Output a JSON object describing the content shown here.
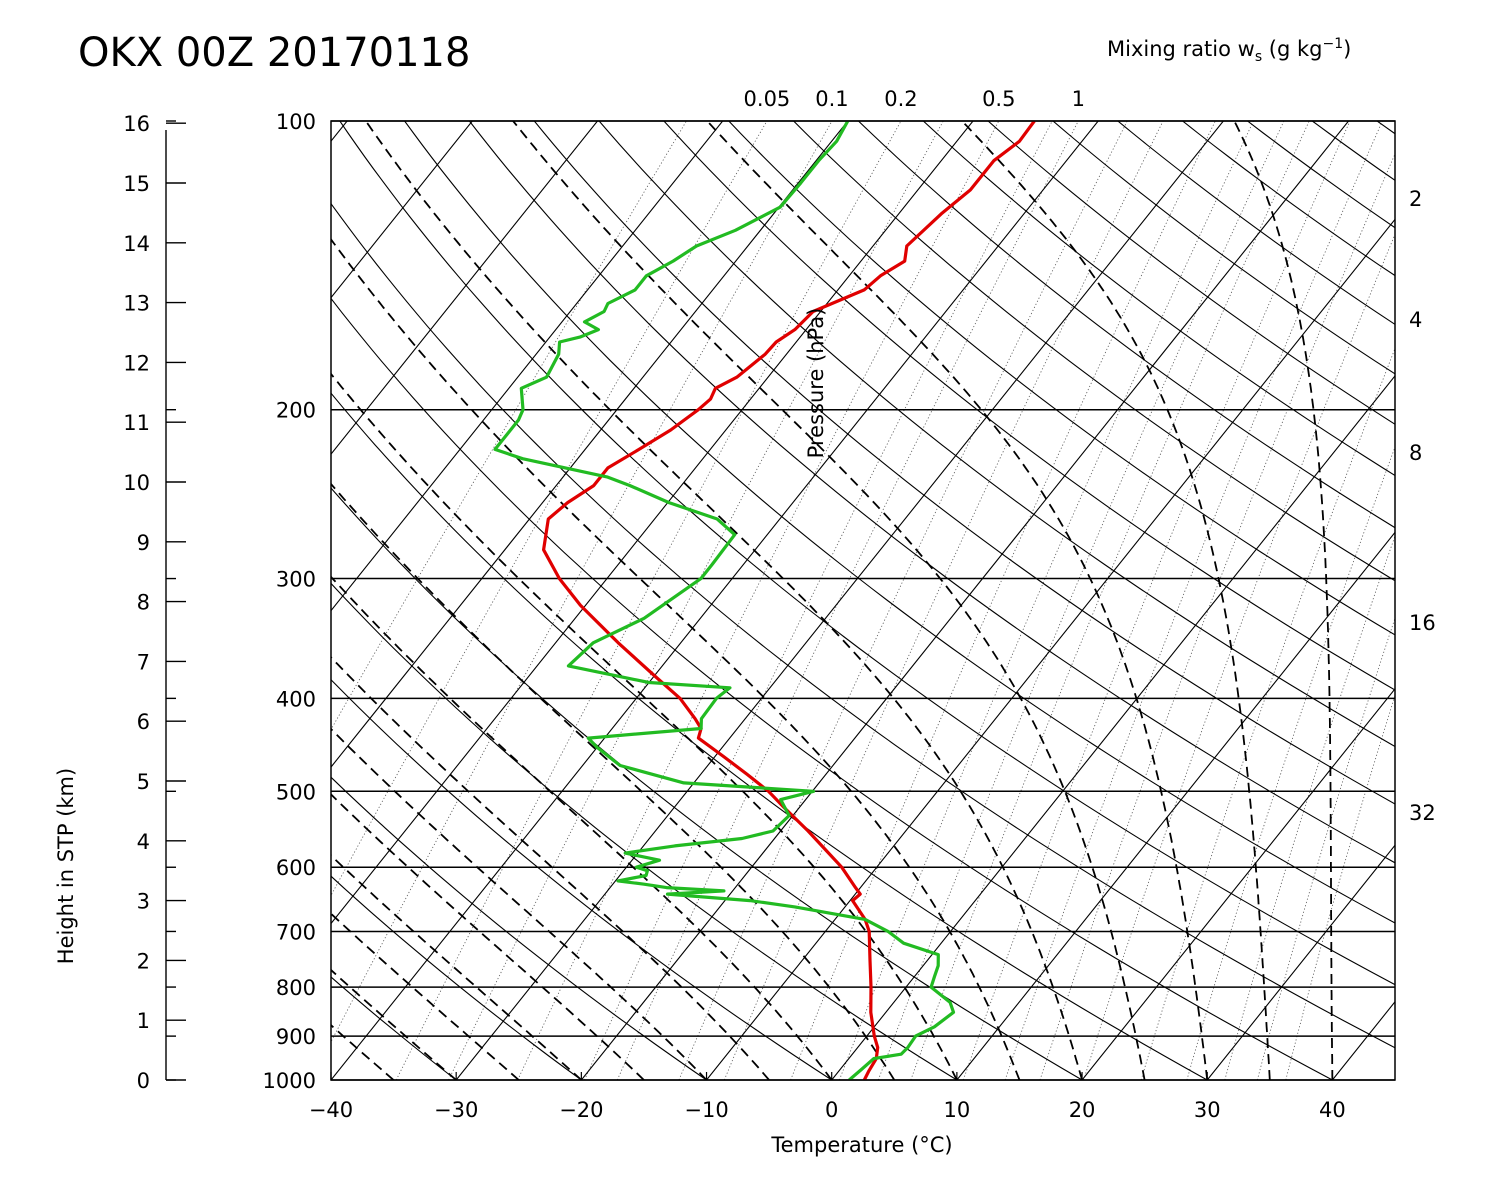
{
  "title": "OKX 00Z 20170118",
  "mixing_ratio_label": {
    "prefix": "Mixing ratio w",
    "sub": "s",
    "middle": " (g kg",
    "sup": "−1",
    "suffix": ")"
  },
  "mixing_ratio_ticks": [
    "0.05",
    "0.1",
    "0.2",
    "0.5",
    "1"
  ],
  "right_ticks": [
    "2",
    "4",
    "8",
    "16",
    "32"
  ],
  "chart_data": {
    "type": "line",
    "subtype": "skew-T log-P diagram",
    "xlabel": "Temperature (°C)",
    "ylabel_left": "Height in STP (km)",
    "ylabel_inner": "Pressure (hPa)",
    "xlim": [
      -40,
      45
    ],
    "ylim_hpa": [
      1000,
      100
    ],
    "pressure_scale": "log",
    "x_ticks": [
      "−40",
      "−30",
      "−20",
      "−10",
      "0",
      "10",
      "20",
      "30",
      "40"
    ],
    "pressure_ticks": [
      "1000",
      "900",
      "800",
      "700",
      "600",
      "500",
      "400",
      "300",
      "200",
      "100"
    ],
    "height_ticks": [
      "0",
      "1",
      "2",
      "3",
      "4",
      "5",
      "6",
      "7",
      "8",
      "9",
      "10",
      "11",
      "12",
      "13",
      "14",
      "15",
      "16"
    ],
    "series": [
      {
        "color": "#e00000",
        "values": [
          [
            1000,
            2.6
          ],
          [
            980,
            2.4
          ],
          [
            950,
            2.2
          ],
          [
            925,
            1.6
          ],
          [
            900,
            0.6
          ],
          [
            850,
            -1.2
          ],
          [
            800,
            -2.8
          ],
          [
            750,
            -4.6
          ],
          [
            700,
            -6.5
          ],
          [
            680,
            -7.6
          ],
          [
            650,
            -9.8
          ],
          [
            640,
            -9.6
          ],
          [
            630,
            -10.4
          ],
          [
            600,
            -12.8
          ],
          [
            550,
            -17.8
          ],
          [
            520,
            -21.2
          ],
          [
            500,
            -23.5
          ],
          [
            480,
            -26.3
          ],
          [
            460,
            -29.3
          ],
          [
            440,
            -32.5
          ],
          [
            430,
            -32.9
          ],
          [
            420,
            -34.0
          ],
          [
            400,
            -36.5
          ],
          [
            380,
            -39.8
          ],
          [
            350,
            -45.0
          ],
          [
            320,
            -50.4
          ],
          [
            300,
            -53.8
          ],
          [
            280,
            -56.9
          ],
          [
            260,
            -58.5
          ],
          [
            250,
            -58.0
          ],
          [
            240,
            -57.0
          ],
          [
            230,
            -57.0
          ],
          [
            220,
            -55.7
          ],
          [
            210,
            -54.4
          ],
          [
            200,
            -53.5
          ],
          [
            195,
            -53.2
          ],
          [
            190,
            -53.5
          ],
          [
            185,
            -52.5
          ],
          [
            175,
            -51.7
          ],
          [
            170,
            -51.6
          ],
          [
            165,
            -50.9
          ],
          [
            158,
            -50.6
          ],
          [
            150,
            -47.9
          ],
          [
            145,
            -47.5
          ],
          [
            140,
            -46.5
          ],
          [
            135,
            -47.3
          ],
          [
            125,
            -46.6
          ],
          [
            118,
            -45.8
          ],
          [
            110,
            -45.8
          ],
          [
            105,
            -45.0
          ],
          [
            100,
            -45.1
          ]
        ]
      },
      {
        "color": "#22bb22",
        "values": [
          [
            1000,
            1.4
          ],
          [
            975,
            1.7
          ],
          [
            950,
            2.0
          ],
          [
            940,
            3.9
          ],
          [
            925,
            4.0
          ],
          [
            900,
            3.9
          ],
          [
            880,
            4.8
          ],
          [
            850,
            5.4
          ],
          [
            830,
            4.5
          ],
          [
            800,
            2.0
          ],
          [
            780,
            1.6
          ],
          [
            760,
            1.2
          ],
          [
            740,
            0.5
          ],
          [
            720,
            -3.0
          ],
          [
            700,
            -5.0
          ],
          [
            680,
            -7.6
          ],
          [
            660,
            -14.0
          ],
          [
            650,
            -18.0
          ],
          [
            640,
            -25.0
          ],
          [
            635,
            -20.7
          ],
          [
            630,
            -25.5
          ],
          [
            625,
            -27.5
          ],
          [
            620,
            -29.8
          ],
          [
            612,
            -27.9
          ],
          [
            605,
            -28.1
          ],
          [
            600,
            -29.2
          ],
          [
            590,
            -27.8
          ],
          [
            580,
            -31.0
          ],
          [
            570,
            -27.5
          ],
          [
            560,
            -22.6
          ],
          [
            550,
            -20.6
          ],
          [
            530,
            -20.3
          ],
          [
            510,
            -22.0
          ],
          [
            500,
            -19.9
          ],
          [
            490,
            -30.8
          ],
          [
            470,
            -37.0
          ],
          [
            450,
            -40.0
          ],
          [
            440,
            -41.3
          ],
          [
            430,
            -32.9
          ],
          [
            420,
            -33.5
          ],
          [
            400,
            -33.6
          ],
          [
            390,
            -33.2
          ],
          [
            385,
            -40.0
          ],
          [
            370,
            -47.5
          ],
          [
            350,
            -47.0
          ],
          [
            330,
            -44.5
          ],
          [
            300,
            -42.5
          ],
          [
            290,
            -42.5
          ],
          [
            270,
            -42.6
          ],
          [
            260,
            -45.0
          ],
          [
            250,
            -49.9
          ],
          [
            240,
            -54.1
          ],
          [
            235,
            -56.5
          ],
          [
            225,
            -64.4
          ],
          [
            220,
            -67.2
          ],
          [
            205,
            -67.2
          ],
          [
            200,
            -67.5
          ],
          [
            190,
            -69.0
          ],
          [
            185,
            -67.7
          ],
          [
            175,
            -68.2
          ],
          [
            170,
            -68.9
          ],
          [
            168,
            -67.6
          ],
          [
            165,
            -66.6
          ],
          [
            162,
            -68.2
          ],
          [
            158,
            -67.3
          ],
          [
            155,
            -67.5
          ],
          [
            150,
            -66.2
          ],
          [
            145,
            -66.2
          ],
          [
            140,
            -65.0
          ],
          [
            135,
            -64.1
          ],
          [
            130,
            -62.0
          ],
          [
            123,
            -59.9
          ],
          [
            116,
            -59.8
          ],
          [
            110,
            -59.8
          ],
          [
            105,
            -59.6
          ],
          [
            100,
            -60.0
          ]
        ]
      }
    ]
  }
}
